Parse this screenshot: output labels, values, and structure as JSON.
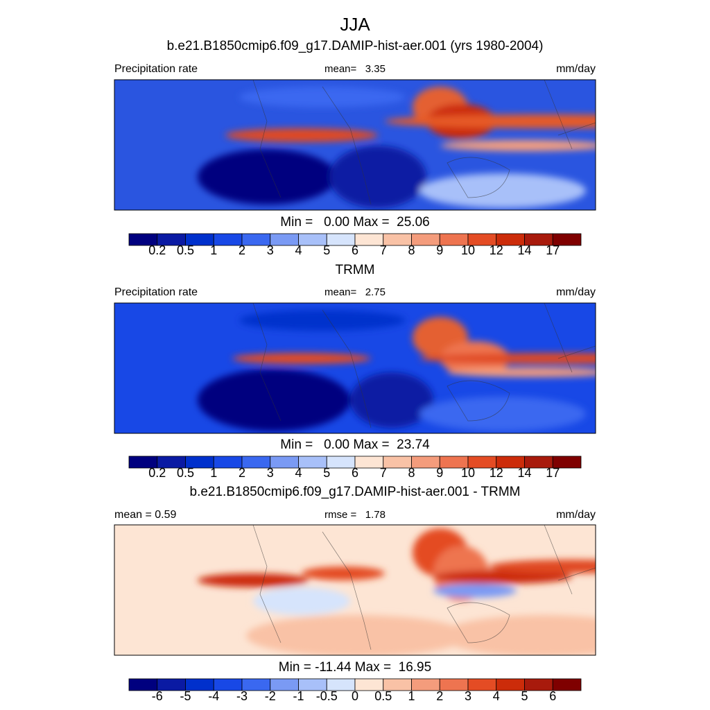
{
  "title": "JJA",
  "panels": [
    {
      "title": "b.e21.B1850cmip6.f09_g17.DAMIP-hist-aer.001 (yrs 1980-2004)",
      "left": "Precipitation rate",
      "center": "mean=   3.35",
      "right": "mm/day",
      "stats": "Min =   0.00 Max =  25.06",
      "colorbar": {
        "colors": [
          "#00007f",
          "#0a1aa3",
          "#0030cc",
          "#1848e6",
          "#3a68f0",
          "#7a9af4",
          "#a8c0f9",
          "#d6e4fc",
          "#fde5d4",
          "#f9c2a6",
          "#f49c7c",
          "#ee7450",
          "#e44c24",
          "#cc2c0a",
          "#a81a0c",
          "#7f0000"
        ],
        "labels": [
          "0.2",
          "0.5",
          "1",
          "2",
          "3",
          "4",
          "5",
          "6",
          "7",
          "8",
          "9",
          "10",
          "12",
          "14",
          "17"
        ]
      }
    },
    {
      "title": "TRMM",
      "left": "Precipitation rate",
      "center": "mean=   2.75",
      "right": "mm/day",
      "stats": "Min =   0.00 Max =  23.74",
      "colorbar": {
        "colors": [
          "#00007f",
          "#0a1aa3",
          "#0030cc",
          "#1848e6",
          "#3a68f0",
          "#7a9af4",
          "#a8c0f9",
          "#d6e4fc",
          "#fde5d4",
          "#f9c2a6",
          "#f49c7c",
          "#ee7450",
          "#e44c24",
          "#cc2c0a",
          "#a81a0c",
          "#7f0000"
        ],
        "labels": [
          "0.2",
          "0.5",
          "1",
          "2",
          "3",
          "4",
          "5",
          "6",
          "7",
          "8",
          "9",
          "10",
          "12",
          "14",
          "17"
        ]
      }
    },
    {
      "title": "b.e21.B1850cmip6.f09_g17.DAMIP-hist-aer.001 - TRMM",
      "left": "mean =   0.59",
      "center": "rmse =   1.78",
      "right": "mm/day",
      "stats": "Min = -11.44 Max =  16.95",
      "colorbar": {
        "colors": [
          "#00007f",
          "#0a1aa3",
          "#0030cc",
          "#1848e6",
          "#3a68f0",
          "#7a9af4",
          "#a8c0f9",
          "#d6e4fc",
          "#fde5d4",
          "#f9c2a6",
          "#f49c7c",
          "#ee7450",
          "#e44c24",
          "#cc2c0a",
          "#a81a0c",
          "#7f0000"
        ],
        "labels": [
          "-6",
          "-5",
          "-4",
          "-3",
          "-2",
          "-1",
          "-0.5",
          "0",
          "0.5",
          "1",
          "2",
          "3",
          "4",
          "5",
          "6"
        ]
      }
    }
  ]
}
